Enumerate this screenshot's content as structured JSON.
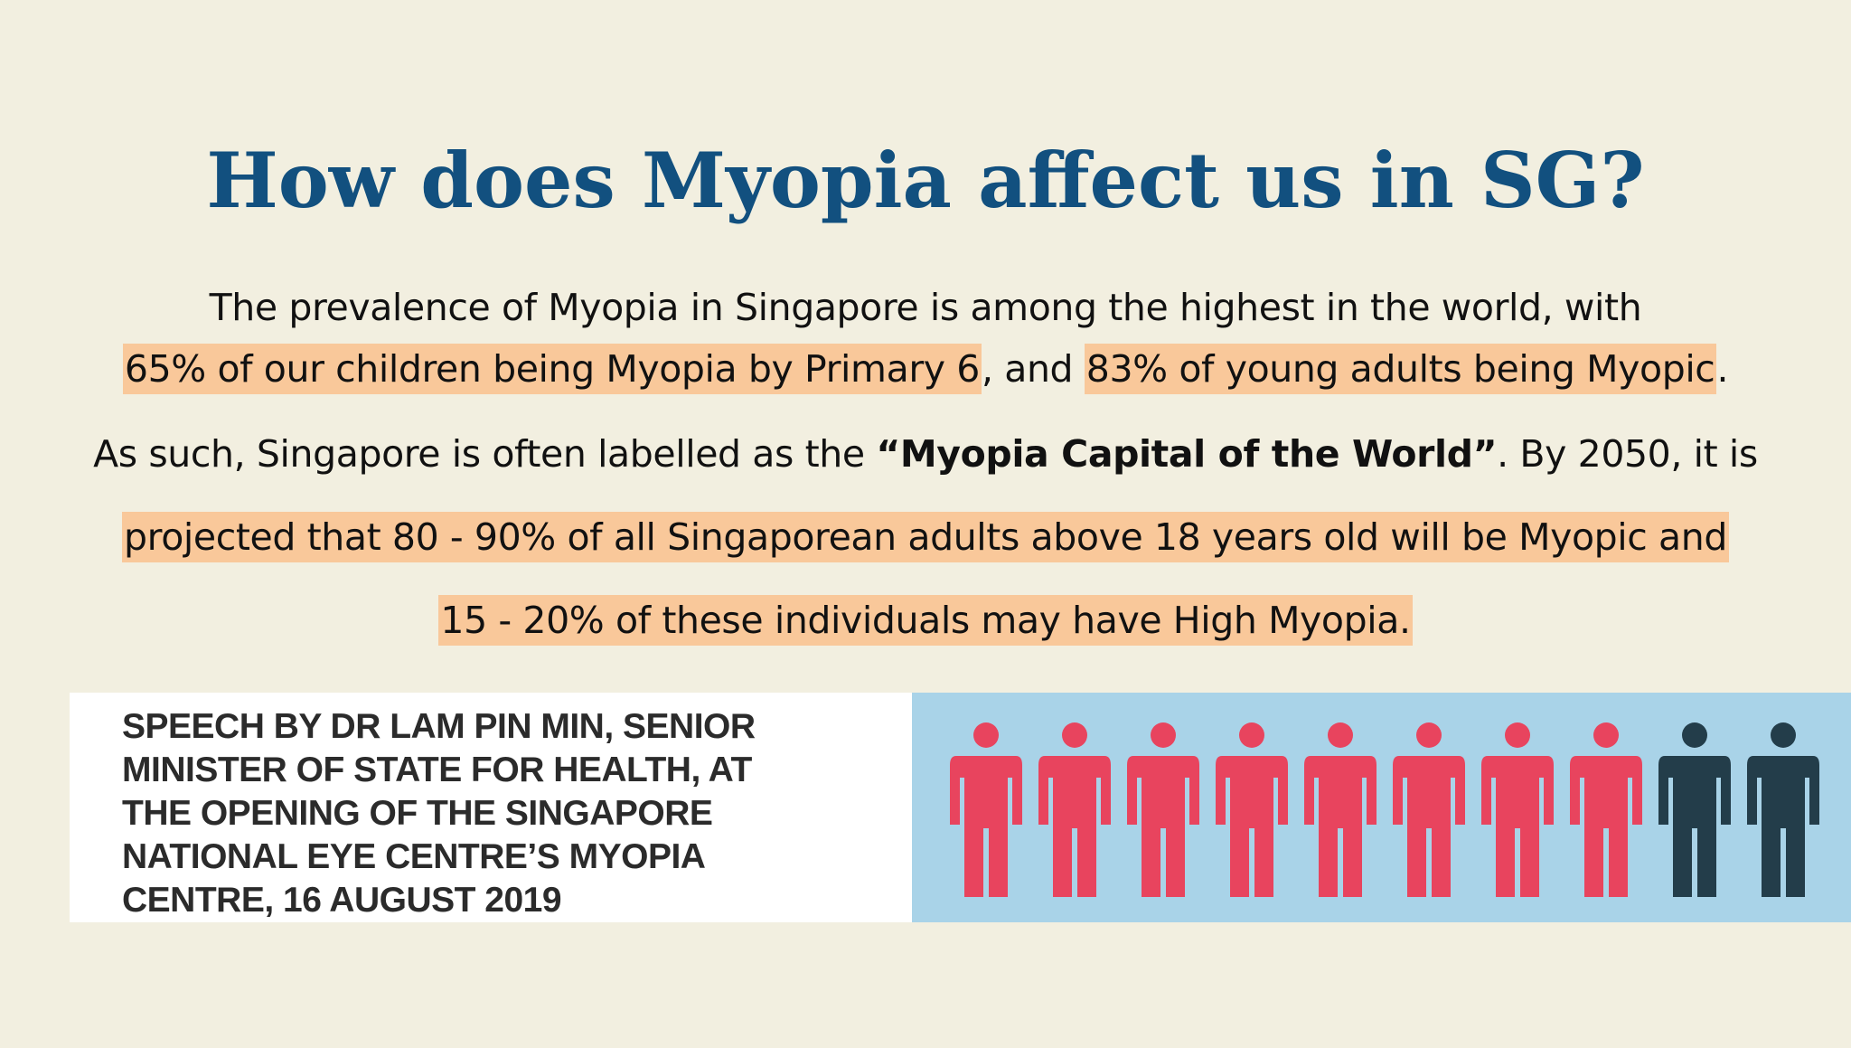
{
  "title": "How does Myopia affect us in SG?",
  "paragraph": {
    "line1": "The prevalence of Myopia in Singapore is among the highest in the world, with",
    "line2": {
      "highlight1": "65% of our children being Myopia by Primary 6",
      "mid": ", and ",
      "highlight2": "83% of young adults being Myopic",
      "end": "."
    },
    "line3": {
      "start": "As such, Singapore is often labelled as the ",
      "bold": "“Myopia Capital of the World”",
      "end": ". By 2050, it is"
    },
    "line4": "projected that 80 - 90% of all Singaporean adults above 18 years old will be Myopic and",
    "line5": "15 - 20% of these individuals may have High Myopia."
  },
  "speech": {
    "text": "SPEECH BY DR LAM PIN MIN, SENIOR\nMINISTER OF STATE FOR HEALTH, AT\nTHE OPENING OF THE SINGAPORE\nNATIONAL EYE CENTRE’S MYOPIA\nCENTRE, 16 AUGUST 2019"
  },
  "infographic": {
    "icon": "person-icon",
    "total_figures": 10,
    "highlighted_figures": 8,
    "highlight_color": "#e8445e",
    "other_color": "#233d4a"
  },
  "colors": {
    "background": "#f2efe0",
    "title": "#12507f",
    "highlight": "#f9c89a",
    "infographic_background": "#a9d3e8"
  }
}
